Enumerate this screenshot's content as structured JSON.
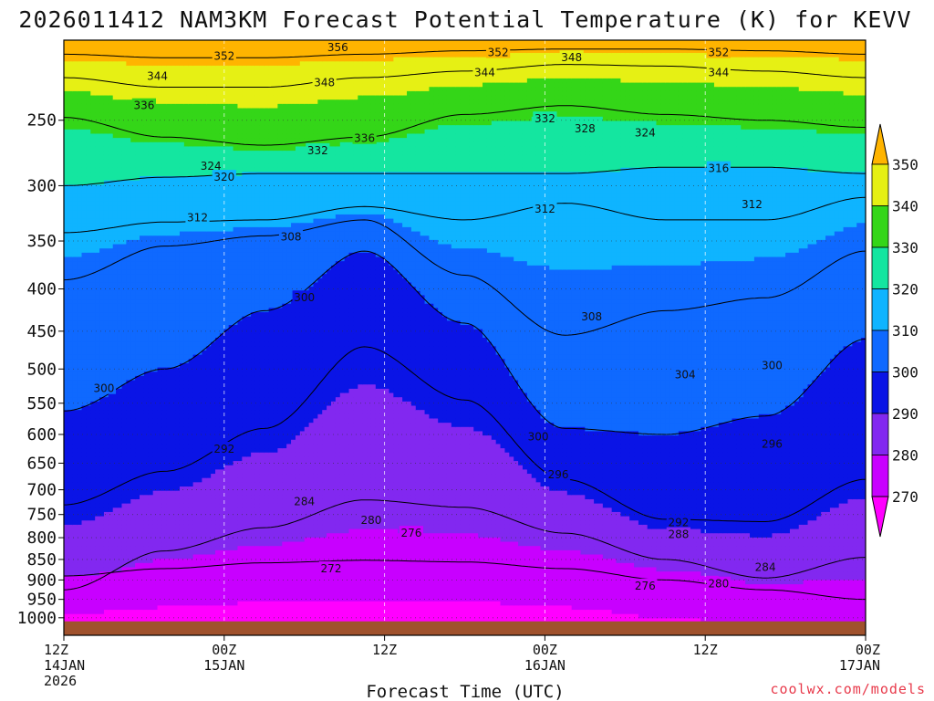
{
  "chart_data": {
    "type": "heatmap",
    "title": "2026011412 NAM3KM Forecast Potential Temperature (K) for KEVV",
    "xlabel": "Forecast Time (UTC)",
    "ylabel": "",
    "credit": "coolwx.com/models",
    "y_scale": "pressure (hPa, inverted)",
    "y_ticks": [
      250,
      300,
      350,
      400,
      450,
      500,
      550,
      600,
      650,
      700,
      750,
      800,
      850,
      900,
      950,
      1000
    ],
    "x_ticks": [
      {
        "t": 0,
        "lines": [
          "12Z",
          "14JAN",
          "2026"
        ]
      },
      {
        "t": 12,
        "lines": [
          "00Z",
          "15JAN"
        ]
      },
      {
        "t": 24,
        "lines": [
          "12Z"
        ]
      },
      {
        "t": 36,
        "lines": [
          "00Z",
          "16JAN"
        ]
      },
      {
        "t": 48,
        "lines": [
          "12Z"
        ]
      },
      {
        "t": 60,
        "lines": [
          "00Z",
          "17JAN"
        ]
      }
    ],
    "x_range_hours": [
      0,
      60
    ],
    "p_range": [
      200,
      1050
    ],
    "ground_level_hPa": 1010,
    "grid": true,
    "colorbar": {
      "levels": [
        270,
        280,
        290,
        300,
        310,
        320,
        330,
        340,
        350
      ],
      "colors": [
        "#ff00ff",
        "#c800ff",
        "#8228f0",
        "#0a14e6",
        "#0f69ff",
        "#0fb4ff",
        "#14e6a0",
        "#34d618",
        "#e6f014",
        "#ffb400"
      ],
      "extend": "both"
    },
    "isotherms_K": [
      {
        "theta": 276,
        "p": [
          890,
          872,
          858,
          852,
          856,
          872,
          900,
          925,
          950
        ]
      },
      {
        "theta": 284,
        "p": [
          925,
          830,
          778,
          720,
          735,
          790,
          850,
          895,
          845
        ]
      },
      {
        "theta": 292,
        "p": [
          730,
          665,
          590,
          470,
          545,
          680,
          760,
          765,
          680
        ]
      },
      {
        "theta": 300,
        "p": [
          562,
          500,
          425,
          360,
          440,
          590,
          600,
          570,
          460
        ]
      },
      {
        "theta": 308,
        "p": [
          390,
          355,
          345,
          330,
          385,
          455,
          425,
          410,
          360
        ]
      },
      {
        "theta": 312,
        "p": [
          342,
          332,
          330,
          318,
          330,
          315,
          330,
          330,
          310
        ]
      },
      {
        "theta": 320,
        "p": [
          300,
          293,
          290,
          290,
          290,
          290,
          285,
          285,
          290
        ]
      },
      {
        "theta": 332,
        "p": [
          248,
          262,
          268,
          262,
          246,
          240,
          246,
          250,
          255
        ]
      },
      {
        "theta": 344,
        "p": [
          222,
          228,
          228,
          222,
          218,
          214,
          215,
          218,
          222
        ]
      },
      {
        "theta": 352,
        "p": [
          208,
          210,
          210,
          208,
          206,
          205,
          205,
          206,
          208
        ]
      }
    ],
    "contour_labels": [
      {
        "text": "356",
        "t": 20.5,
        "p": 204
      },
      {
        "text": "352",
        "t": 12.0,
        "p": 209
      },
      {
        "text": "352",
        "t": 32.5,
        "p": 207
      },
      {
        "text": "348",
        "t": 38.0,
        "p": 210
      },
      {
        "text": "352",
        "t": 49.0,
        "p": 207
      },
      {
        "text": "344",
        "t": 7.0,
        "p": 221
      },
      {
        "text": "348",
        "t": 19.5,
        "p": 225
      },
      {
        "text": "344",
        "t": 31.5,
        "p": 219
      },
      {
        "text": "344",
        "t": 49.0,
        "p": 219
      },
      {
        "text": "336",
        "t": 6.0,
        "p": 240
      },
      {
        "text": "332",
        "t": 36.0,
        "p": 249
      },
      {
        "text": "328",
        "t": 39.0,
        "p": 256
      },
      {
        "text": "324",
        "t": 43.5,
        "p": 259
      },
      {
        "text": "336",
        "t": 22.5,
        "p": 263
      },
      {
        "text": "332",
        "t": 19.0,
        "p": 272
      },
      {
        "text": "324",
        "t": 11.0,
        "p": 284
      },
      {
        "text": "320",
        "t": 12.0,
        "p": 293
      },
      {
        "text": "316",
        "t": 49.0,
        "p": 286
      },
      {
        "text": "312",
        "t": 36.0,
        "p": 320
      },
      {
        "text": "312",
        "t": 51.5,
        "p": 316
      },
      {
        "text": "312",
        "t": 10.0,
        "p": 328
      },
      {
        "text": "308",
        "t": 17.0,
        "p": 346
      },
      {
        "text": "300",
        "t": 18.0,
        "p": 410
      },
      {
        "text": "308",
        "t": 39.5,
        "p": 432
      },
      {
        "text": "304",
        "t": 46.5,
        "p": 508
      },
      {
        "text": "300",
        "t": 53.0,
        "p": 495
      },
      {
        "text": "300",
        "t": 3.0,
        "p": 528
      },
      {
        "text": "300",
        "t": 35.5,
        "p": 604
      },
      {
        "text": "292",
        "t": 12.0,
        "p": 625
      },
      {
        "text": "296",
        "t": 37.0,
        "p": 671
      },
      {
        "text": "296",
        "t": 53.0,
        "p": 616
      },
      {
        "text": "284",
        "t": 18.0,
        "p": 723
      },
      {
        "text": "280",
        "t": 23.0,
        "p": 762
      },
      {
        "text": "276",
        "t": 26.0,
        "p": 790
      },
      {
        "text": "292",
        "t": 46.0,
        "p": 767
      },
      {
        "text": "288",
        "t": 46.0,
        "p": 793
      },
      {
        "text": "272",
        "t": 20.0,
        "p": 872
      },
      {
        "text": "284",
        "t": 52.5,
        "p": 869
      },
      {
        "text": "280",
        "t": 49.0,
        "p": 910
      },
      {
        "text": "276",
        "t": 43.5,
        "p": 915
      }
    ]
  }
}
